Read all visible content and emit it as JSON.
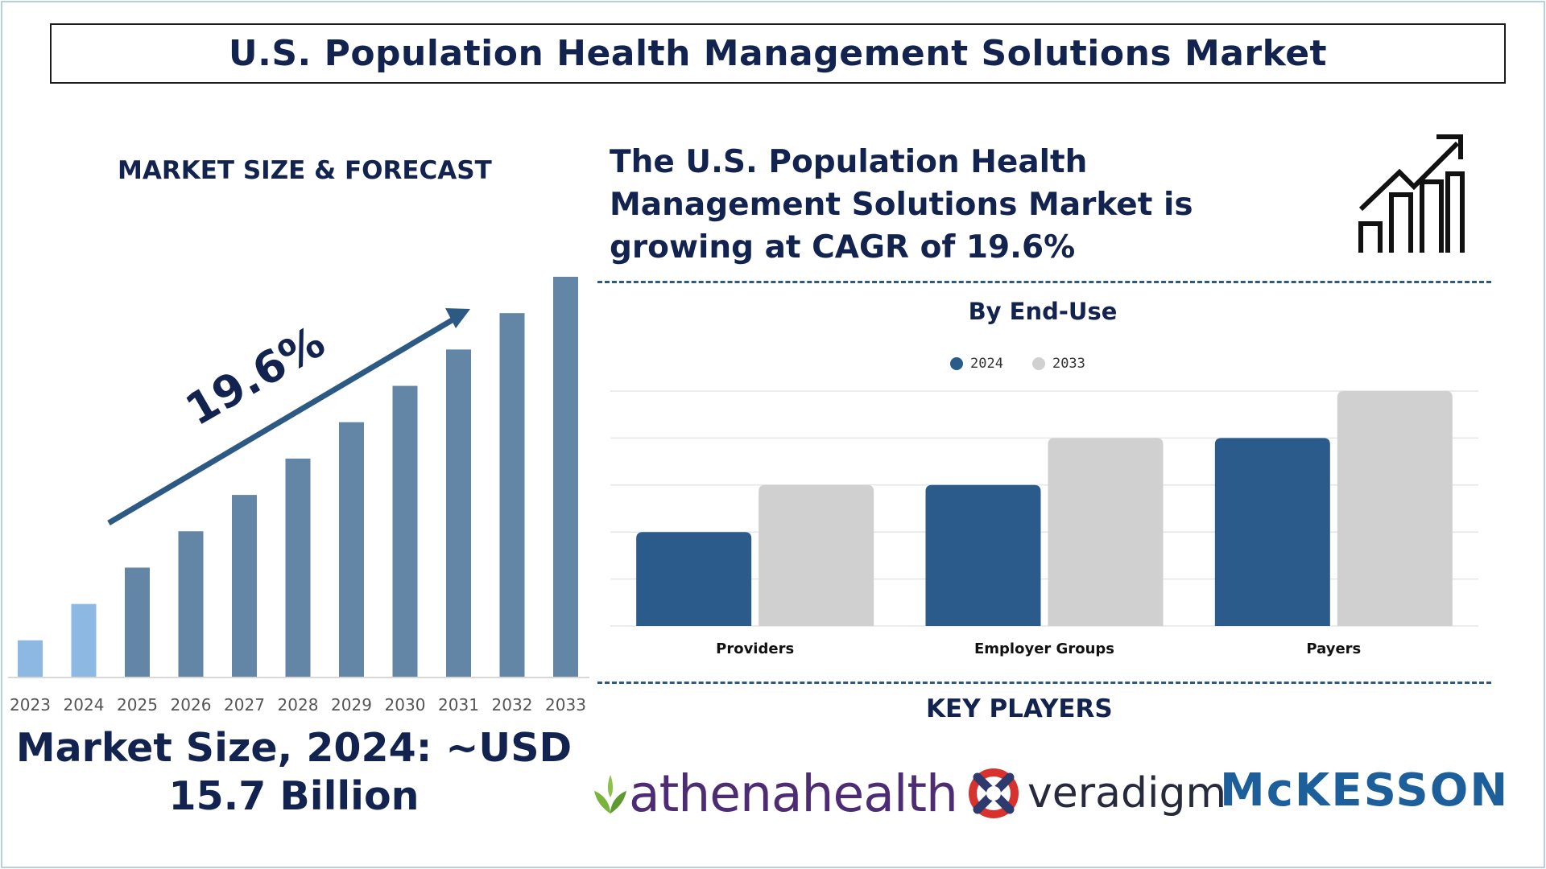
{
  "title": "U.S. Population Health Management Solutions Market",
  "market_label": "MARKET SIZE & FORECAST",
  "cagr_text": "The U.S. Population Health Management Solutions Market is growing at CAGR of 19.6%",
  "cagr_arrow_label": "19.6%",
  "market_size_text": "Market Size, 2024: ~USD 15.7 Billion",
  "key_players_label": "KEY PLAYERS",
  "logos": {
    "athena": "athenahealth",
    "veradigm": "veradigm",
    "veradigm_mark": ".",
    "mckesson": "McKESSON"
  },
  "colors": {
    "navy": "#13234f",
    "bar_light": "#8db8e1",
    "bar_dark": "#6386a7",
    "series_2024": "#2a5b8a",
    "series_2033": "#d0d0d0"
  },
  "chart_data": [
    {
      "type": "bar",
      "categories": [
        "2023",
        "2024",
        "2025",
        "2026",
        "2027",
        "2028",
        "2029",
        "2030",
        "2031",
        "2032",
        "2033"
      ],
      "values": [
        1.0,
        2.0,
        3.0,
        4.0,
        5.0,
        6.0,
        7.0,
        8.0,
        9.0,
        10.0,
        11.0
      ],
      "highlighted_categories": [
        "2023",
        "2024"
      ],
      "title": "",
      "ylim": [
        0,
        11
      ],
      "grid": false,
      "annotation": "19.6%"
    },
    {
      "type": "bar",
      "title": "By End-Use",
      "categories": [
        "Providers",
        "Employer Groups",
        "Payers"
      ],
      "series": [
        {
          "name": "2024",
          "values": [
            2,
            3,
            4
          ]
        },
        {
          "name": "2033",
          "values": [
            3,
            4,
            5
          ]
        }
      ],
      "ylim": [
        0,
        5
      ],
      "grid": true,
      "legend_position": "top-center"
    }
  ]
}
